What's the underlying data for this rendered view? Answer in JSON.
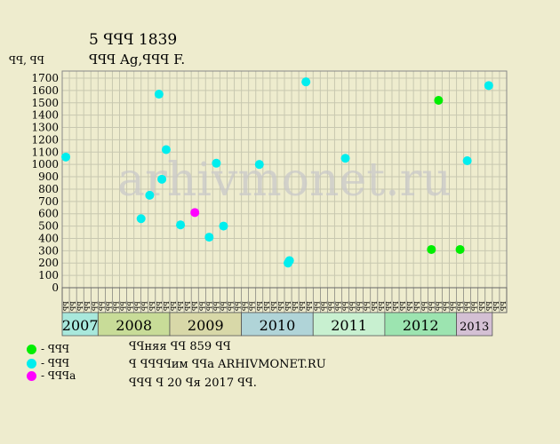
{
  "chart_data": {
    "type": "scatter",
    "title": "5 ꟼꟼꟼ 1839",
    "subtitle": "ꟼꟼꟼ Ag,ꟼꟼꟼ F.",
    "ylabel": "ꟼꟼ, ꟼꟼ",
    "ylim": [
      0,
      1700
    ],
    "yticks": [
      0,
      100,
      200,
      300,
      400,
      500,
      600,
      700,
      800,
      900,
      1000,
      1100,
      1200,
      1300,
      1400,
      1500,
      1600,
      1700
    ],
    "grid": true,
    "watermark": "arhivmonet.ru",
    "month_labels": [
      "ꟼꟼ",
      "ꟼꟼ",
      "ꟼꟼ",
      "ꟼꟼ",
      "ꟼꟼ",
      "ꟼꟼ",
      "ꟼꟼ",
      "ꟼꟼ",
      "ꟼꟼ",
      "ꟼꟼ",
      "ꟼꟼ",
      "ꟼꟼ",
      "ꟼꟼ",
      "ꟼꟼ",
      "ꟼꟼ",
      "ꟼꟼ",
      "ꟼꟼ",
      "ꟼꟼ",
      "ꟼꟼ",
      "ꟼꟼ",
      "ꟼꟼ",
      "ꟼꟼ",
      "ꟼꟼ",
      "ꟼꟼ",
      "ꟼꟼ",
      "ꟼꟼ",
      "ꟼꟼ",
      "ꟼꟼ",
      "ꟼꟼ",
      "ꟼꟼ",
      "ꟼꟼ",
      "ꟼꟼ",
      "ꟼꟼ",
      "ꟼꟼ",
      "ꟼꟼ",
      "ꟼꟼ",
      "ꟼꟼ",
      "ꟼꟼ",
      "ꟼꟼ",
      "ꟼꟼ",
      "ꟼꟼ",
      "ꟼꟼ",
      "ꟼꟼ",
      "ꟼꟼ",
      "ꟼꟼ",
      "ꟼꟼ",
      "ꟼꟼ",
      "ꟼꟼ",
      "ꟼꟼ",
      "ꟼꟼ",
      "ꟼꟼ",
      "ꟼꟼ",
      "ꟼꟼ",
      "ꟼꟼ",
      "ꟼꟼ",
      "ꟼꟼ",
      "ꟼꟼ",
      "ꟼꟼ",
      "ꟼꟼ",
      "ꟼꟼ",
      "ꟼꟼ",
      "ꟼꟼ"
    ],
    "years": [
      {
        "label": "2007",
        "start": 0,
        "span": 5,
        "color": "#a8e8dc"
      },
      {
        "label": "2008",
        "start": 5,
        "span": 10,
        "color": "#c8dc98"
      },
      {
        "label": "2009",
        "start": 15,
        "span": 10,
        "color": "#d8d8a8"
      },
      {
        "label": "2010",
        "start": 25,
        "span": 10,
        "color": "#b0d4d8"
      },
      {
        "label": "2011",
        "start": 35,
        "span": 10,
        "color": "#c8f0d0"
      },
      {
        "label": "2012",
        "start": 45,
        "span": 10,
        "color": "#9ce4b0"
      },
      {
        "label": "2013",
        "start": 55,
        "span": 5,
        "color": "#d4c0d4"
      }
    ],
    "series": [
      {
        "name": "ꟼꟼꟼ",
        "color": "#00ee00",
        "points": [
          [
            51.5,
            310
          ],
          [
            52.5,
            1520
          ],
          [
            55.5,
            310
          ]
        ]
      },
      {
        "name": "ꟼꟼꟼ",
        "color": "#00eeee",
        "points": [
          [
            0.5,
            1060
          ],
          [
            11.0,
            560
          ],
          [
            12.2,
            750
          ],
          [
            13.5,
            1570
          ],
          [
            13.9,
            880
          ],
          [
            14.5,
            1120
          ],
          [
            16.5,
            510
          ],
          [
            20.5,
            410
          ],
          [
            21.5,
            1010
          ],
          [
            22.5,
            500
          ],
          [
            27.5,
            1000
          ],
          [
            31.5,
            200
          ],
          [
            31.7,
            220
          ],
          [
            34.0,
            1670
          ],
          [
            39.5,
            1050
          ],
          [
            56.5,
            1030
          ],
          [
            59.5,
            1640
          ]
        ]
      },
      {
        "name": "ꟼꟼꟼa",
        "color": "#ff00ff",
        "points": [
          [
            18.5,
            610
          ]
        ]
      }
    ]
  },
  "legend": [
    {
      "label": "- ꟼꟼꟼ",
      "color": "#00ee00"
    },
    {
      "label": "- ꟼꟼꟼ",
      "color": "#00eeee"
    },
    {
      "label": "- ꟼꟼꟼa",
      "color": "#ff00ff"
    }
  ],
  "info": {
    "line1": "ꟼꟼняя ꟼꟼ 859 ꟼꟼ",
    "line2": "ꟼ ꟼꟼꟼꟼим ꟼꟼa ARHIVMONET.RU",
    "line3": "ꟼꟼꟼ ꟼ 20 ꟼя 2017 ꟼꟼ."
  }
}
